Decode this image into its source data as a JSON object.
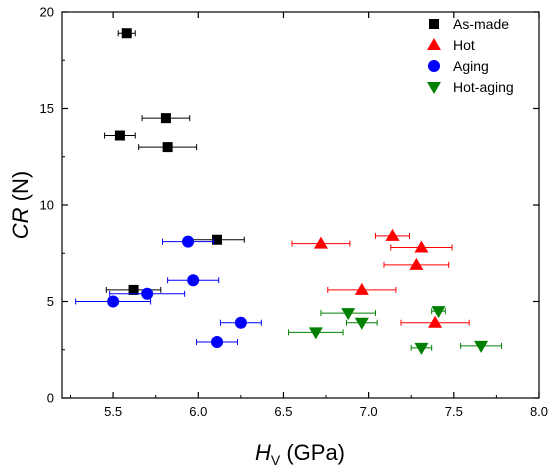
{
  "chart_data": {
    "type": "scatter",
    "title": "",
    "xlabel_main": "H",
    "xlabel_sub": "V",
    "xlabel_unit": " (GPa)",
    "ylabel": "CR (N)",
    "ylabel_italic": "CR",
    "ylabel_unit": " (N)",
    "xlim": [
      5.2,
      8.0
    ],
    "ylim": [
      0,
      20
    ],
    "xticks": [
      5.5,
      6.0,
      6.5,
      7.0,
      7.5,
      8.0
    ],
    "xtick_labels": [
      "5.5",
      "6.0",
      "6.5",
      "7.0",
      "7.5",
      "8.0"
    ],
    "yticks": [
      0,
      5,
      10,
      15,
      20
    ],
    "ytick_labels": [
      "0",
      "5",
      "10",
      "15",
      "20"
    ],
    "grid": false,
    "legend_position": "top-right",
    "series": [
      {
        "name": "As-made",
        "marker": "square",
        "color": "#000000",
        "points": [
          {
            "x": 5.58,
            "y": 18.9,
            "xerr": 0.05
          },
          {
            "x": 5.81,
            "y": 14.5,
            "xerr": 0.14
          },
          {
            "x": 5.54,
            "y": 13.6,
            "xerr": 0.09
          },
          {
            "x": 5.82,
            "y": 13.0,
            "xerr": 0.17
          },
          {
            "x": 6.11,
            "y": 8.2,
            "xerr": 0.16
          },
          {
            "x": 5.62,
            "y": 5.6,
            "xerr": 0.16
          }
        ]
      },
      {
        "name": "Hot",
        "marker": "triangle-up",
        "color": "#ff0000",
        "points": [
          {
            "x": 6.72,
            "y": 8.0,
            "xerr": 0.17
          },
          {
            "x": 7.14,
            "y": 8.4,
            "xerr": 0.1
          },
          {
            "x": 7.31,
            "y": 7.8,
            "xerr": 0.18
          },
          {
            "x": 7.28,
            "y": 6.9,
            "xerr": 0.19
          },
          {
            "x": 6.96,
            "y": 5.6,
            "xerr": 0.2
          },
          {
            "x": 7.39,
            "y": 3.9,
            "xerr": 0.2
          }
        ]
      },
      {
        "name": "Aging",
        "marker": "circle",
        "color": "#0000ff",
        "points": [
          {
            "x": 5.94,
            "y": 8.1,
            "xerr": 0.15
          },
          {
            "x": 5.97,
            "y": 6.1,
            "xerr": 0.15
          },
          {
            "x": 5.7,
            "y": 5.4,
            "xerr": 0.22
          },
          {
            "x": 5.5,
            "y": 5.0,
            "xerr": 0.22
          },
          {
            "x": 6.25,
            "y": 3.9,
            "xerr": 0.12
          },
          {
            "x": 6.11,
            "y": 2.9,
            "xerr": 0.12
          }
        ]
      },
      {
        "name": "Hot-aging",
        "marker": "triangle-down",
        "color": "#008000",
        "points": [
          {
            "x": 7.41,
            "y": 4.5,
            "xerr": 0.04
          },
          {
            "x": 6.88,
            "y": 4.4,
            "xerr": 0.16
          },
          {
            "x": 6.96,
            "y": 3.9,
            "xerr": 0.09
          },
          {
            "x": 6.69,
            "y": 3.4,
            "xerr": 0.16
          },
          {
            "x": 7.31,
            "y": 2.6,
            "xerr": 0.06
          },
          {
            "x": 7.66,
            "y": 2.7,
            "xerr": 0.12
          }
        ]
      }
    ]
  }
}
